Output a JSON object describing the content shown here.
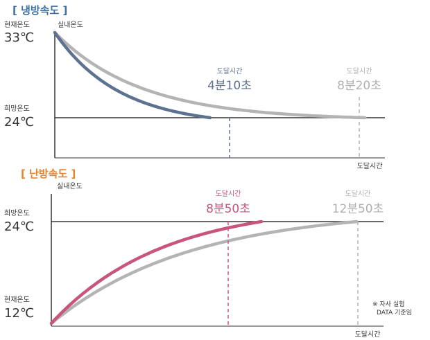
{
  "colors": {
    "cool_title": "#3b6ea5",
    "heat_title": "#e8822b",
    "cool_line": "#5d7290",
    "heat_line": "#c8557a",
    "compare_line": "#b4b4b4",
    "axis": "#333333",
    "grey_text": "#b0b0b0"
  },
  "chart_data": [
    {
      "type": "line",
      "title": "[ 냉방속도 ]",
      "xlabel": "도달시간",
      "ylabel": "실내온도",
      "y_labels": [
        {
          "caption": "현재온도",
          "value_text": "33℃",
          "value": 33
        },
        {
          "caption": "희망온도",
          "value_text": "24℃",
          "value": 24
        }
      ],
      "series": [
        {
          "color": "#5d7290",
          "points": [
            [
              0,
              33
            ],
            [
              4.17,
              24
            ]
          ]
        },
        {
          "color": "#b4b4b4",
          "points": [
            [
              0,
              33
            ],
            [
              8.33,
              24
            ]
          ]
        }
      ],
      "annotations": [
        {
          "label": "도달시간",
          "value_text": "4분10초",
          "x": 4.17,
          "color": "#5d7290"
        },
        {
          "label": "도달시간",
          "value_text": "8분20초",
          "x": 8.33,
          "color": "#b4b4b4"
        }
      ]
    },
    {
      "type": "line",
      "title": "[ 난방속도 ]",
      "xlabel": "도달시간",
      "ylabel": "실내온도",
      "y_labels": [
        {
          "caption": "희망온도",
          "value_text": "24℃",
          "value": 24
        },
        {
          "caption": "현재온도",
          "value_text": "12℃",
          "value": 12
        }
      ],
      "series": [
        {
          "color": "#c8557a",
          "points": [
            [
              0,
              12
            ],
            [
              8.83,
              24
            ]
          ]
        },
        {
          "color": "#b4b4b4",
          "points": [
            [
              0,
              12
            ],
            [
              12.83,
              24
            ]
          ]
        }
      ],
      "annotations": [
        {
          "label": "도달시간",
          "value_text": "8분50초",
          "x": 8.83,
          "color": "#c8557a"
        },
        {
          "label": "도달시간",
          "value_text": "12분50초",
          "x": 12.83,
          "color": "#b4b4b4"
        }
      ],
      "footnote": [
        "※ 자사 실험",
        "DATA 기준임"
      ]
    }
  ]
}
